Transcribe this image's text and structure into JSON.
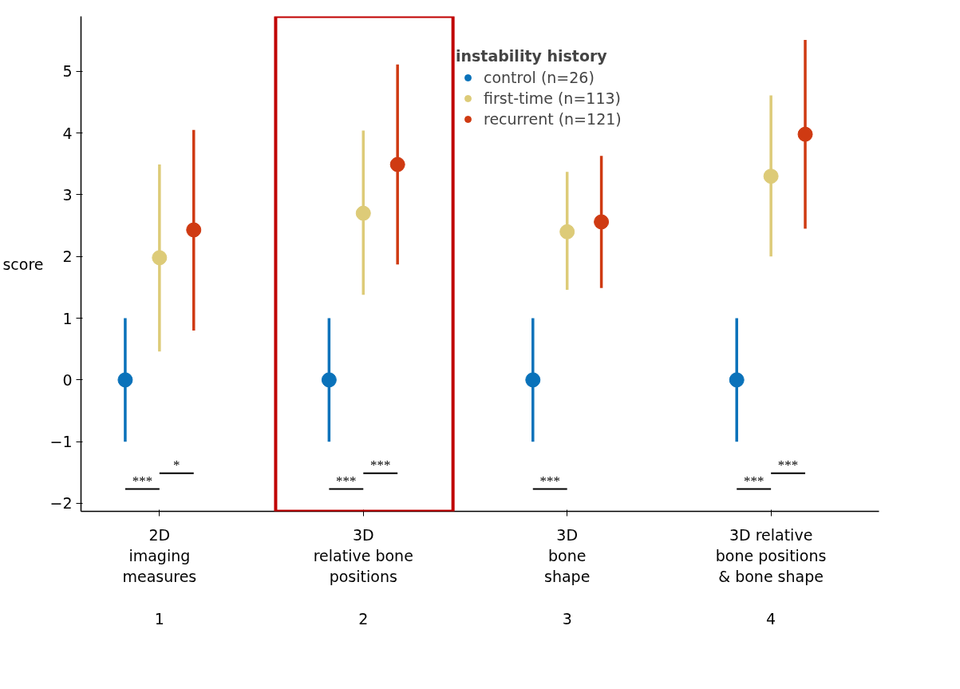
{
  "chart_data": {
    "type": "scatter",
    "ylabel": "score",
    "legend_title": "instability history",
    "legend": "top right",
    "grid": false,
    "marker": "circle",
    "categories": [
      "2D\nimaging\nmeasures\n\n1",
      "3D\nrelative bone\npositions\n\n2",
      "3D\nbone\nshape\n\n3",
      "3D relative\nbone positions\n& bone shape\n\n4"
    ],
    "ylim": [
      -2.13,
      5.89
    ],
    "yticks": [
      {
        "value": -2,
        "label": "−2"
      },
      {
        "value": -1,
        "label": "−1"
      },
      0,
      1,
      2,
      3,
      4,
      5
    ],
    "series": [
      {
        "name": "control (n=26)",
        "color": "#0a72ba",
        "values": [
          0,
          0,
          0,
          0
        ],
        "errors": [
          [
            -1,
            1
          ],
          [
            -1,
            1
          ],
          [
            -1,
            1
          ],
          [
            -1,
            1
          ]
        ]
      },
      {
        "name": "first-time (n=113)",
        "color": "#ddcb78",
        "values": [
          1.98,
          2.7,
          2.4,
          3.3
        ],
        "errors": [
          [
            0.46,
            3.49
          ],
          [
            1.38,
            4.04
          ],
          [
            1.46,
            3.37
          ],
          [
            2.0,
            4.61
          ]
        ]
      },
      {
        "name": "recurrent (n=121)",
        "color": "#cf3a12",
        "values": [
          2.43,
          3.49,
          2.56,
          3.98
        ],
        "errors": [
          [
            0.8,
            4.05
          ],
          [
            1.87,
            5.11
          ],
          [
            1.49,
            3.63
          ],
          [
            2.45,
            5.51
          ]
        ]
      }
    ],
    "annotations": [
      "***",
      "*",
      "***",
      "***",
      "***",
      "***",
      "***"
    ]
  }
}
